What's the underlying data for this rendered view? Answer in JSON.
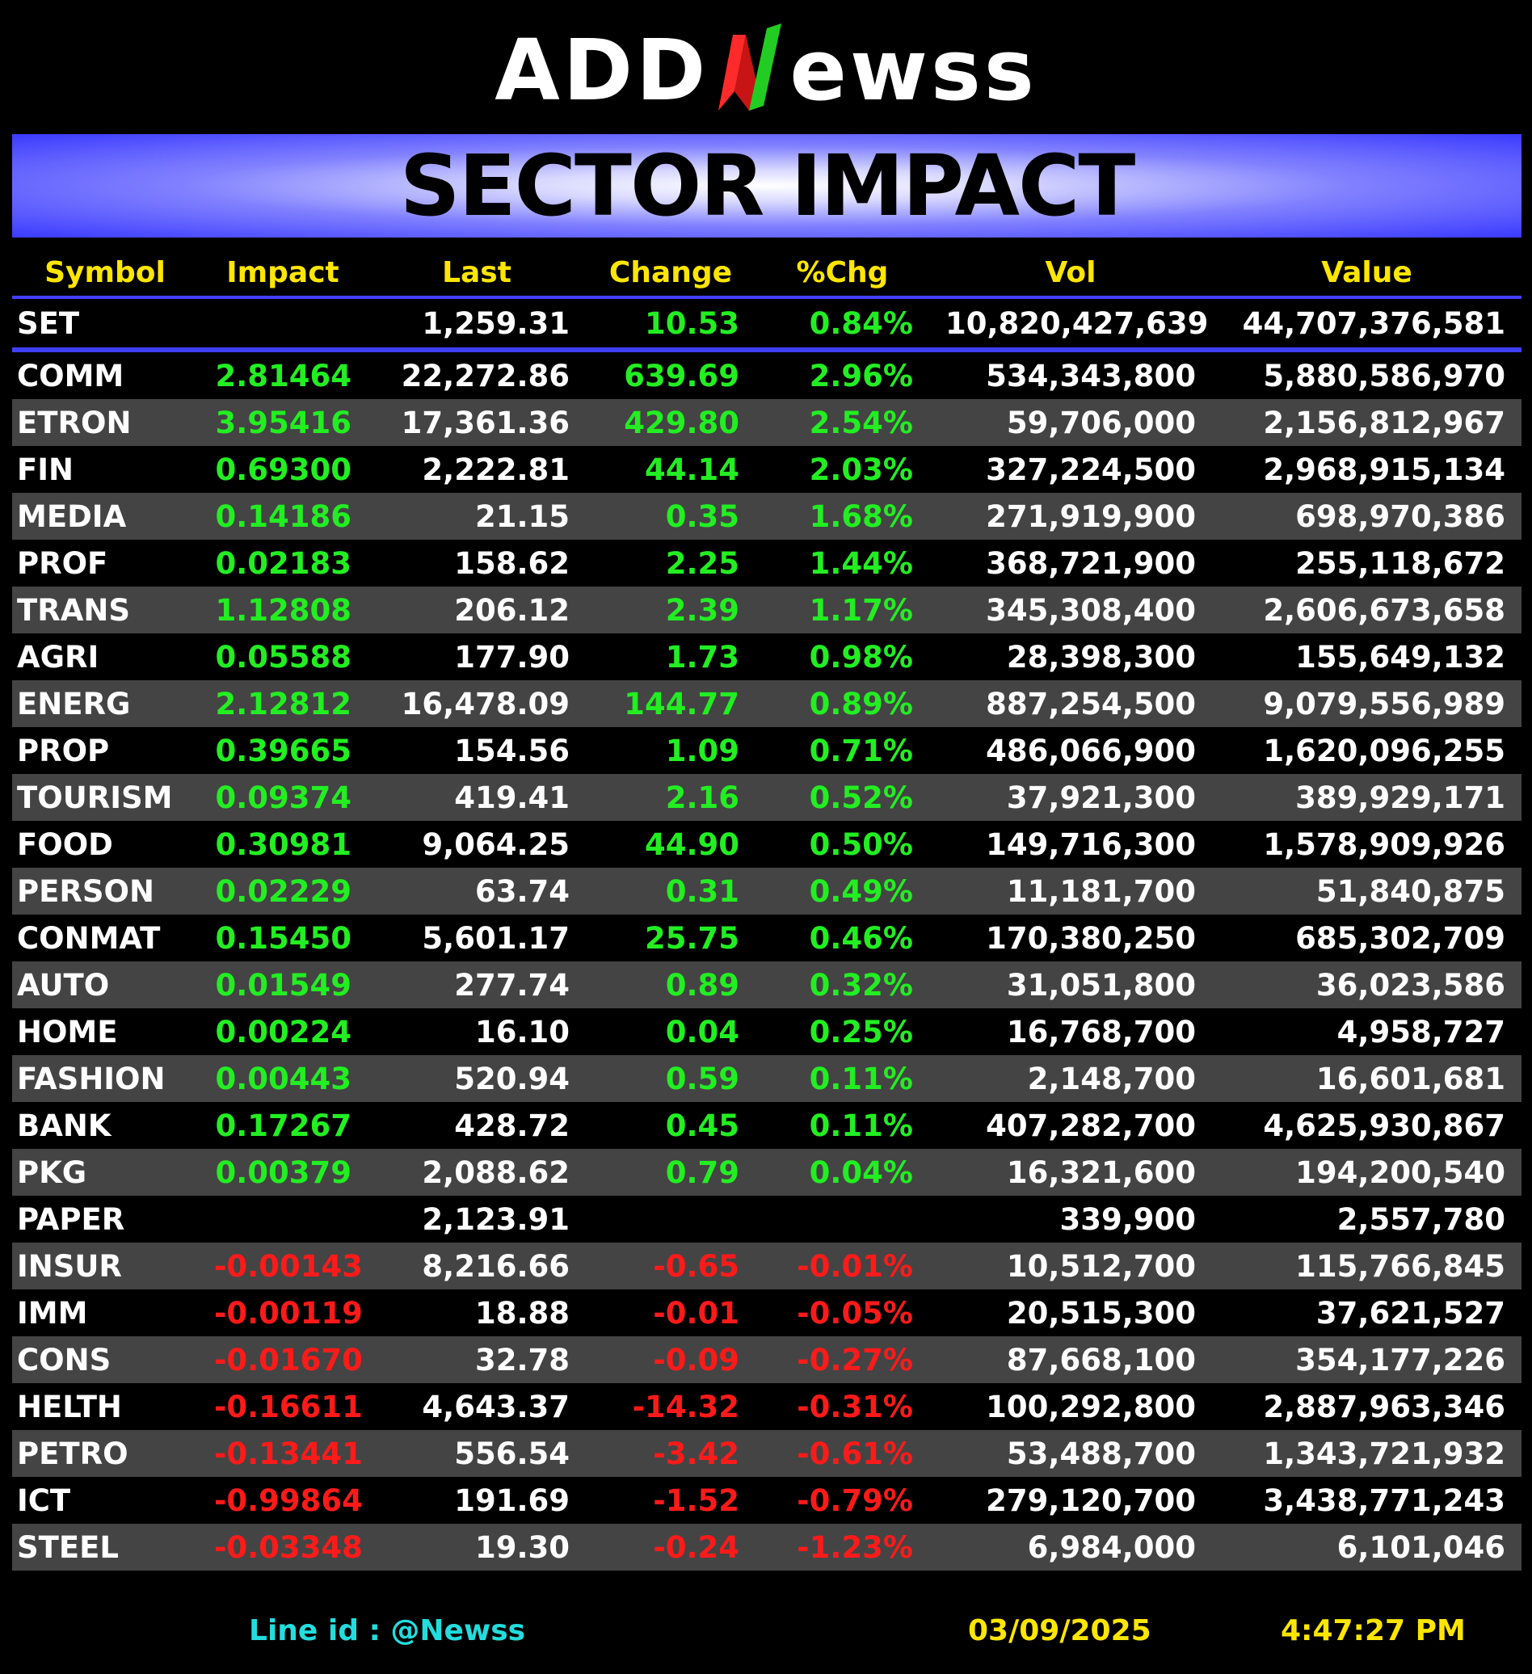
{
  "logo": {
    "part1": "ADD",
    "part2": "ewss"
  },
  "banner": {
    "title": "SECTOR IMPACT"
  },
  "table": {
    "headers": [
      "Symbol",
      "Impact",
      "Last",
      "Change",
      "%Chg",
      "Vol",
      "Value"
    ],
    "index_row": {
      "symbol": "SET",
      "impact": "",
      "last": "1,259.31",
      "change": "10.53",
      "pct": "0.84%",
      "vol": "10,820,427,639",
      "value": "44,707,376,581"
    },
    "rows": [
      {
        "symbol": "COMM",
        "impact": "2.81464",
        "last": "22,272.86",
        "change": "639.69",
        "pct": "2.96%",
        "vol": "534,343,800",
        "value": "5,880,586,970"
      },
      {
        "symbol": "ETRON",
        "impact": "3.95416",
        "last": "17,361.36",
        "change": "429.80",
        "pct": "2.54%",
        "vol": "59,706,000",
        "value": "2,156,812,967"
      },
      {
        "symbol": "FIN",
        "impact": "0.69300",
        "last": "2,222.81",
        "change": "44.14",
        "pct": "2.03%",
        "vol": "327,224,500",
        "value": "2,968,915,134"
      },
      {
        "symbol": "MEDIA",
        "impact": "0.14186",
        "last": "21.15",
        "change": "0.35",
        "pct": "1.68%",
        "vol": "271,919,900",
        "value": "698,970,386"
      },
      {
        "symbol": "PROF",
        "impact": "0.02183",
        "last": "158.62",
        "change": "2.25",
        "pct": "1.44%",
        "vol": "368,721,900",
        "value": "255,118,672"
      },
      {
        "symbol": "TRANS",
        "impact": "1.12808",
        "last": "206.12",
        "change": "2.39",
        "pct": "1.17%",
        "vol": "345,308,400",
        "value": "2,606,673,658"
      },
      {
        "symbol": "AGRI",
        "impact": "0.05588",
        "last": "177.90",
        "change": "1.73",
        "pct": "0.98%",
        "vol": "28,398,300",
        "value": "155,649,132"
      },
      {
        "symbol": "ENERG",
        "impact": "2.12812",
        "last": "16,478.09",
        "change": "144.77",
        "pct": "0.89%",
        "vol": "887,254,500",
        "value": "9,079,556,989"
      },
      {
        "symbol": "PROP",
        "impact": "0.39665",
        "last": "154.56",
        "change": "1.09",
        "pct": "0.71%",
        "vol": "486,066,900",
        "value": "1,620,096,255"
      },
      {
        "symbol": "TOURISM",
        "impact": "0.09374",
        "last": "419.41",
        "change": "2.16",
        "pct": "0.52%",
        "vol": "37,921,300",
        "value": "389,929,171"
      },
      {
        "symbol": "FOOD",
        "impact": "0.30981",
        "last": "9,064.25",
        "change": "44.90",
        "pct": "0.50%",
        "vol": "149,716,300",
        "value": "1,578,909,926"
      },
      {
        "symbol": "PERSON",
        "impact": "0.02229",
        "last": "63.74",
        "change": "0.31",
        "pct": "0.49%",
        "vol": "11,181,700",
        "value": "51,840,875"
      },
      {
        "symbol": "CONMAT",
        "impact": "0.15450",
        "last": "5,601.17",
        "change": "25.75",
        "pct": "0.46%",
        "vol": "170,380,250",
        "value": "685,302,709"
      },
      {
        "symbol": "AUTO",
        "impact": "0.01549",
        "last": "277.74",
        "change": "0.89",
        "pct": "0.32%",
        "vol": "31,051,800",
        "value": "36,023,586"
      },
      {
        "symbol": "HOME",
        "impact": "0.00224",
        "last": "16.10",
        "change": "0.04",
        "pct": "0.25%",
        "vol": "16,768,700",
        "value": "4,958,727"
      },
      {
        "symbol": "FASHION",
        "impact": "0.00443",
        "last": "520.94",
        "change": "0.59",
        "pct": "0.11%",
        "vol": "2,148,700",
        "value": "16,601,681"
      },
      {
        "symbol": "BANK",
        "impact": "0.17267",
        "last": "428.72",
        "change": "0.45",
        "pct": "0.11%",
        "vol": "407,282,700",
        "value": "4,625,930,867"
      },
      {
        "symbol": "PKG",
        "impact": "0.00379",
        "last": "2,088.62",
        "change": "0.79",
        "pct": "0.04%",
        "vol": "16,321,600",
        "value": "194,200,540"
      },
      {
        "symbol": "PAPER",
        "impact": "",
        "last": "2,123.91",
        "change": "",
        "pct": "",
        "vol": "339,900",
        "value": "2,557,780"
      },
      {
        "symbol": "INSUR",
        "impact": "-0.00143",
        "last": "8,216.66",
        "change": "-0.65",
        "pct": "-0.01%",
        "vol": "10,512,700",
        "value": "115,766,845"
      },
      {
        "symbol": "IMM",
        "impact": "-0.00119",
        "last": "18.88",
        "change": "-0.01",
        "pct": "-0.05%",
        "vol": "20,515,300",
        "value": "37,621,527"
      },
      {
        "symbol": "CONS",
        "impact": "-0.01670",
        "last": "32.78",
        "change": "-0.09",
        "pct": "-0.27%",
        "vol": "87,668,100",
        "value": "354,177,226"
      },
      {
        "symbol": "HELTH",
        "impact": "-0.16611",
        "last": "4,643.37",
        "change": "-14.32",
        "pct": "-0.31%",
        "vol": "100,292,800",
        "value": "2,887,963,346"
      },
      {
        "symbol": "PETRO",
        "impact": "-0.13441",
        "last": "556.54",
        "change": "-3.42",
        "pct": "-0.61%",
        "vol": "53,488,700",
        "value": "1,343,721,932"
      },
      {
        "symbol": "ICT",
        "impact": "-0.99864",
        "last": "191.69",
        "change": "-1.52",
        "pct": "-0.79%",
        "vol": "279,120,700",
        "value": "3,438,771,243"
      },
      {
        "symbol": "STEEL",
        "impact": "-0.03348",
        "last": "19.30",
        "change": "-0.24",
        "pct": "-1.23%",
        "vol": "6,984,000",
        "value": "6,101,046"
      }
    ]
  },
  "footer": {
    "line_id": "Line id  : @Newss",
    "date": "03/09/2025",
    "time": "4:47:27 PM"
  },
  "colors": {
    "up": "#22ee22",
    "down": "#ff1a1a",
    "header": "#ffe600",
    "accent": "#4040ff",
    "footer_line": "#22dddd"
  }
}
